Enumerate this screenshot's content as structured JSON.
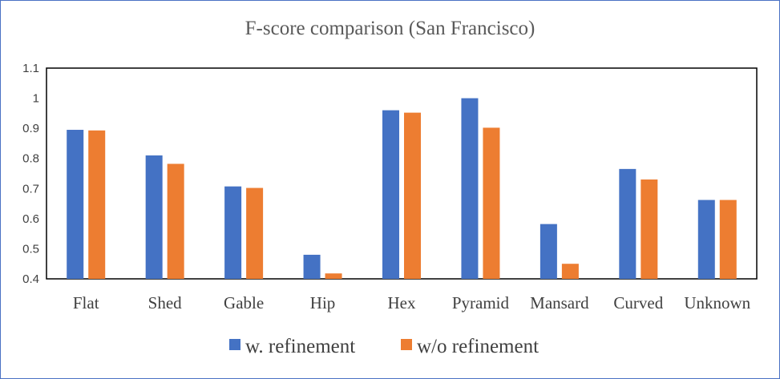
{
  "chart_data": {
    "type": "bar",
    "title": "F-score comparison (San Francisco)",
    "xlabel": "",
    "ylabel": "",
    "ylim": [
      0.4,
      1.1
    ],
    "yticks": [
      "0.4",
      "0.5",
      "0.6",
      "0.7",
      "0.8",
      "0.9",
      "1",
      "1.1"
    ],
    "categories": [
      "Flat",
      "Shed",
      "Gable",
      "Hip",
      "Hex",
      "Pyramid",
      "Mansard",
      "Curved",
      "Unknown"
    ],
    "series": [
      {
        "name": "w. refinement",
        "color": "#4472c4",
        "values": [
          0.895,
          0.81,
          0.707,
          0.48,
          0.96,
          1.0,
          0.582,
          0.765,
          0.662
        ]
      },
      {
        "name": "w/o refinement",
        "color": "#ed7d31",
        "values": [
          0.893,
          0.782,
          0.702,
          0.418,
          0.952,
          0.902,
          0.45,
          0.73,
          0.662
        ]
      }
    ],
    "grid": false,
    "legend": "bottom"
  }
}
